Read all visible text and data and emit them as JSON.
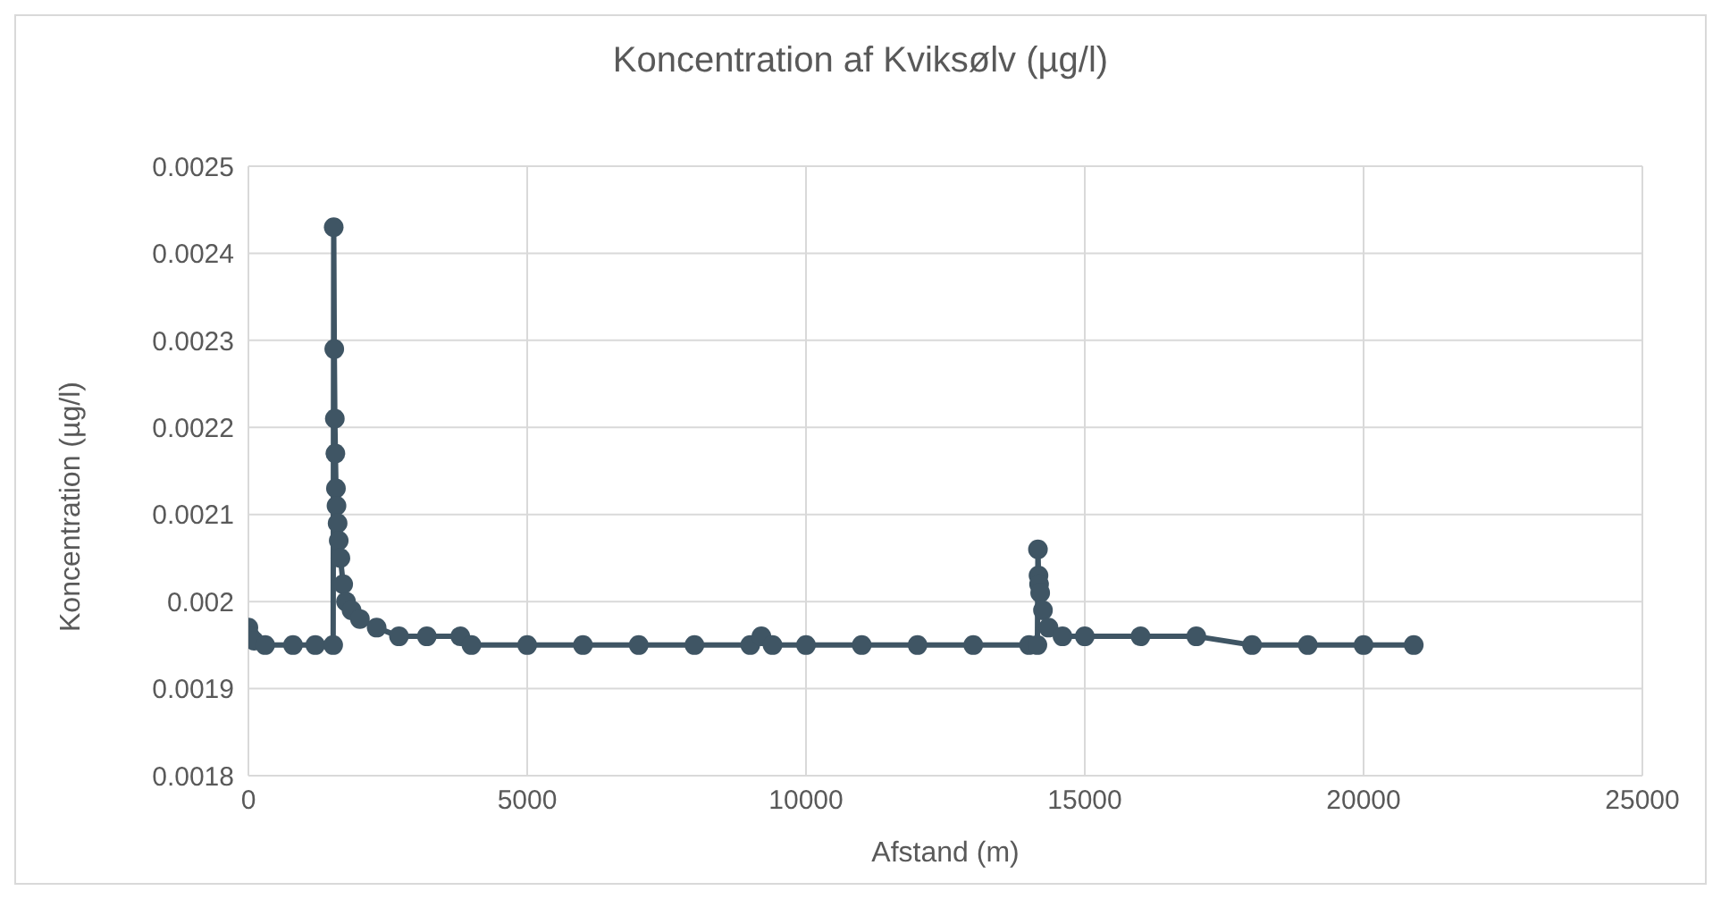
{
  "chart_data": {
    "type": "line",
    "title": "Koncentration af Kviksølv (µg/l)",
    "xlabel": "Afstand (m)",
    "ylabel": "Koncentration (µg/l)",
    "x": [
      0,
      30,
      100,
      300,
      800,
      1200,
      1520,
      1530,
      1540,
      1550,
      1560,
      1570,
      1580,
      1600,
      1620,
      1650,
      1700,
      1750,
      1850,
      2000,
      2300,
      2700,
      3200,
      3800,
      4000,
      5000,
      6000,
      7000,
      8000,
      9000,
      9200,
      9400,
      10000,
      11000,
      12000,
      13000,
      14000,
      14150,
      14160,
      14170,
      14180,
      14200,
      14250,
      14350,
      14600,
      15000,
      16000,
      17000,
      18000,
      19000,
      20000,
      20900
    ],
    "series": [
      {
        "color": "#3f5564",
        "values": [
          0.00197,
          0.00196,
          0.001955,
          0.00195,
          0.00195,
          0.00195,
          0.00195,
          0.00243,
          0.00229,
          0.00221,
          0.00217,
          0.00213,
          0.00211,
          0.00209,
          0.00207,
          0.00205,
          0.00202,
          0.002,
          0.00199,
          0.00198,
          0.00197,
          0.00196,
          0.00196,
          0.00196,
          0.00195,
          0.00195,
          0.00195,
          0.00195,
          0.00195,
          0.00195,
          0.00196,
          0.00195,
          0.00195,
          0.00195,
          0.00195,
          0.00195,
          0.00195,
          0.00195,
          0.00206,
          0.00203,
          0.00202,
          0.00201,
          0.00199,
          0.00197,
          0.00196,
          0.00196,
          0.00196,
          0.00196,
          0.00195,
          0.00195,
          0.00195,
          0.00195
        ]
      }
    ],
    "xlim": [
      0,
      25000
    ],
    "xticks": [
      0,
      5000,
      10000,
      15000,
      20000,
      25000
    ],
    "ylim": [
      0.0018,
      0.0025
    ],
    "yticks": [
      0.0018,
      0.0019,
      0.002,
      0.0021,
      0.0022,
      0.0023,
      0.0024,
      0.0025
    ],
    "grid": true,
    "marker": "circle",
    "line_style": "solid",
    "legend": false
  }
}
